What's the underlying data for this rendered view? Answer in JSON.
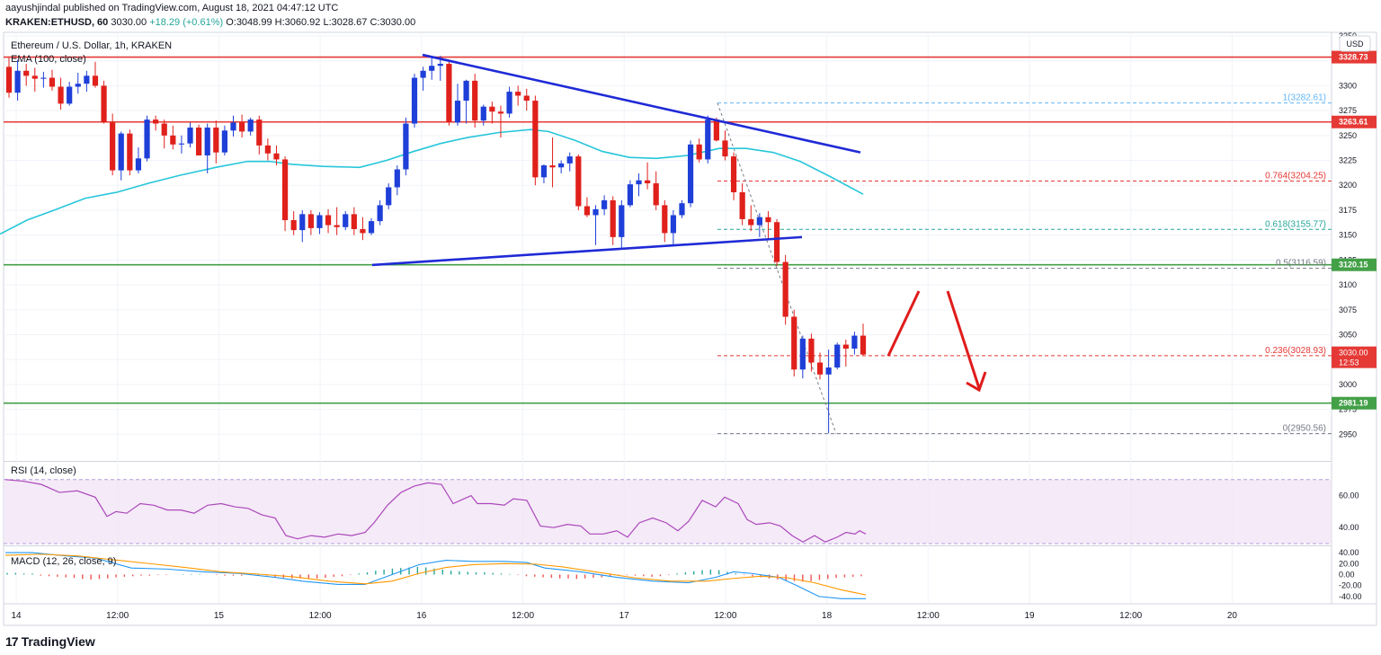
{
  "header": {
    "published": "aayushjindal published on TradingView.com, August 18, 2021 04:47:12 UTC",
    "symbol": "KRAKEN:ETHUSD, 60",
    "last": "3030.00",
    "change": "+18.29 (+0.61%)",
    "ohlc": "O:3048.99 H:3060.92 L:3028.67 C:3030.00"
  },
  "footer": {
    "brand": "TradingView",
    "mark": "17"
  },
  "chart_data": {
    "type": "candlestick",
    "title": "Ethereum / U.S. Dollar, 1h, KRAKEN",
    "currency": "USD",
    "indicator_label": "EMA (100, close)",
    "ylim": [
      2925,
      3350
    ],
    "y_ticks": [
      2950,
      2975,
      3000,
      3025,
      3050,
      3075,
      3100,
      3125,
      3150,
      3175,
      3200,
      3225,
      3250,
      3275,
      3300,
      3325,
      3350
    ],
    "x_ticks": [
      "14",
      "12:00",
      "15",
      "12:00",
      "16",
      "12:00",
      "17",
      "12:00",
      "18",
      "12:00",
      "19",
      "12:00",
      "20"
    ],
    "candles": [
      [
        3319,
        3328,
        3288,
        3293
      ],
      [
        3293,
        3326,
        3285,
        3315
      ],
      [
        3315,
        3322,
        3300,
        3310
      ],
      [
        3310,
        3318,
        3294,
        3307
      ],
      [
        3307,
        3314,
        3298,
        3308
      ],
      [
        3308,
        3316,
        3295,
        3299
      ],
      [
        3299,
        3308,
        3276,
        3282
      ],
      [
        3282,
        3304,
        3280,
        3299
      ],
      [
        3299,
        3313,
        3292,
        3302
      ],
      [
        3302,
        3315,
        3294,
        3310
      ],
      [
        3310,
        3324,
        3298,
        3300
      ],
      [
        3300,
        3305,
        3262,
        3263
      ],
      [
        3263,
        3272,
        3210,
        3215
      ],
      [
        3215,
        3254,
        3205,
        3252
      ],
      [
        3252,
        3256,
        3210,
        3215
      ],
      [
        3215,
        3238,
        3212,
        3227
      ],
      [
        3227,
        3270,
        3224,
        3266
      ],
      [
        3266,
        3270,
        3255,
        3262
      ],
      [
        3262,
        3266,
        3237,
        3250
      ],
      [
        3250,
        3260,
        3236,
        3241
      ],
      [
        3241,
        3250,
        3232,
        3242
      ],
      [
        3242,
        3263,
        3238,
        3258
      ],
      [
        3258,
        3261,
        3232,
        3230
      ],
      [
        3230,
        3262,
        3212,
        3258
      ],
      [
        3258,
        3265,
        3222,
        3233
      ],
      [
        3233,
        3260,
        3230,
        3255
      ],
      [
        3255,
        3270,
        3249,
        3263
      ],
      [
        3263,
        3271,
        3248,
        3254
      ],
      [
        3254,
        3268,
        3250,
        3266
      ],
      [
        3266,
        3270,
        3231,
        3240
      ],
      [
        3240,
        3247,
        3225,
        3232
      ],
      [
        3232,
        3240,
        3220,
        3226
      ],
      [
        3226,
        3229,
        3154,
        3165
      ],
      [
        3165,
        3174,
        3150,
        3155
      ],
      [
        3155,
        3175,
        3143,
        3171
      ],
      [
        3171,
        3175,
        3150,
        3157
      ],
      [
        3157,
        3173,
        3151,
        3170
      ],
      [
        3170,
        3176,
        3152,
        3160
      ],
      [
        3160,
        3178,
        3150,
        3158
      ],
      [
        3158,
        3174,
        3155,
        3171
      ],
      [
        3171,
        3178,
        3150,
        3156
      ],
      [
        3156,
        3168,
        3145,
        3152
      ],
      [
        3152,
        3167,
        3150,
        3164
      ],
      [
        3164,
        3185,
        3160,
        3180
      ],
      [
        3180,
        3202,
        3176,
        3198
      ],
      [
        3198,
        3220,
        3190,
        3216
      ],
      [
        3216,
        3268,
        3210,
        3262
      ],
      [
        3262,
        3312,
        3258,
        3308
      ],
      [
        3308,
        3319,
        3295,
        3315
      ],
      [
        3315,
        3328,
        3306,
        3320
      ],
      [
        3320,
        3330,
        3305,
        3322
      ],
      [
        3322,
        3325,
        3260,
        3263
      ],
      [
        3263,
        3302,
        3260,
        3285
      ],
      [
        3285,
        3306,
        3262,
        3305
      ],
      [
        3305,
        3312,
        3258,
        3265
      ],
      [
        3265,
        3281,
        3260,
        3279
      ],
      [
        3279,
        3284,
        3262,
        3274
      ],
      [
        3274,
        3280,
        3248,
        3272
      ],
      [
        3272,
        3299,
        3268,
        3294
      ],
      [
        3294,
        3300,
        3280,
        3290
      ],
      [
        3290,
        3297,
        3275,
        3285
      ],
      [
        3285,
        3290,
        3200,
        3208
      ],
      [
        3208,
        3221,
        3202,
        3220
      ],
      [
        3220,
        3248,
        3198,
        3218
      ],
      [
        3218,
        3225,
        3212,
        3222
      ],
      [
        3222,
        3233,
        3214,
        3229
      ],
      [
        3229,
        3231,
        3175,
        3179
      ],
      [
        3179,
        3188,
        3168,
        3170
      ],
      [
        3170,
        3180,
        3140,
        3176
      ],
      [
        3176,
        3190,
        3170,
        3185
      ],
      [
        3185,
        3189,
        3140,
        3148
      ],
      [
        3148,
        3185,
        3136,
        3180
      ],
      [
        3180,
        3205,
        3178,
        3201
      ],
      [
        3201,
        3212,
        3189,
        3205
      ],
      [
        3205,
        3223,
        3196,
        3202
      ],
      [
        3202,
        3214,
        3175,
        3180
      ],
      [
        3180,
        3185,
        3143,
        3152
      ],
      [
        3152,
        3175,
        3140,
        3170
      ],
      [
        3170,
        3185,
        3167,
        3182
      ],
      [
        3182,
        3245,
        3178,
        3241
      ],
      [
        3241,
        3247,
        3223,
        3226
      ],
      [
        3226,
        3270,
        3222,
        3266
      ],
      [
        3266,
        3268,
        3244,
        3245
      ],
      [
        3245,
        3255,
        3225,
        3229
      ],
      [
        3229,
        3233,
        3185,
        3193
      ],
      [
        3193,
        3202,
        3160,
        3166
      ],
      [
        3166,
        3180,
        3154,
        3160
      ],
      [
        3160,
        3172,
        3148,
        3168
      ],
      [
        3168,
        3174,
        3145,
        3163
      ],
      [
        3163,
        3166,
        3119,
        3123
      ],
      [
        3123,
        3130,
        3060,
        3068
      ],
      [
        3068,
        3075,
        3008,
        3015
      ],
      [
        3015,
        3049,
        3006,
        3046
      ],
      [
        3046,
        3051,
        3013,
        3022
      ],
      [
        3022,
        3032,
        3005,
        3010
      ],
      [
        3010,
        3035,
        2951,
        3017
      ],
      [
        3017,
        3042,
        3015,
        3040
      ],
      [
        3040,
        3045,
        3018,
        3036
      ],
      [
        3036,
        3053,
        3030,
        3049
      ],
      [
        3049,
        3061,
        3029,
        3030
      ]
    ],
    "ema_100": [
      [
        0,
        3151
      ],
      [
        30,
        3165
      ],
      [
        60,
        3175
      ],
      [
        95,
        3187
      ],
      [
        130,
        3193
      ],
      [
        165,
        3202
      ],
      [
        200,
        3210
      ],
      [
        240,
        3218
      ],
      [
        275,
        3224
      ],
      [
        300,
        3224
      ],
      [
        325,
        3221
      ],
      [
        360,
        3219
      ],
      [
        400,
        3218
      ],
      [
        430,
        3225
      ],
      [
        460,
        3234
      ],
      [
        490,
        3242
      ],
      [
        520,
        3248
      ],
      [
        555,
        3253
      ],
      [
        590,
        3256
      ],
      [
        610,
        3254
      ],
      [
        640,
        3245
      ],
      [
        670,
        3234
      ],
      [
        700,
        3228
      ],
      [
        730,
        3227
      ],
      [
        765,
        3230
      ],
      [
        800,
        3237
      ],
      [
        830,
        3237
      ],
      [
        860,
        3233
      ],
      [
        890,
        3224
      ],
      [
        925,
        3208
      ],
      [
        960,
        3191
      ]
    ],
    "price_levels": [
      {
        "value": 3328.73,
        "label": "3328.73",
        "color": "#e53935"
      },
      {
        "value": 3263.61,
        "label": "3263.61",
        "color": "#e53935"
      },
      {
        "value": 3120.15,
        "label": "3120.15",
        "color": "#43a047"
      },
      {
        "value": 2981.19,
        "label": "2981.19",
        "color": "#43a047"
      }
    ],
    "last_price": {
      "value": 3030.0,
      "label": "3030.00",
      "countdown": "12:53",
      "color": "#e53935"
    },
    "fibonacci": [
      {
        "level": "1",
        "value": 3282.61,
        "label": "1(3282.61)",
        "color": "#64b5f6"
      },
      {
        "level": "0.764",
        "value": 3204.25,
        "label": "0.764(3204.25)",
        "color": "#e53935"
      },
      {
        "level": "0.618",
        "value": 3155.77,
        "label": "0.618(3155.77)",
        "color": "#26a69a"
      },
      {
        "level": "0.5",
        "value": 3116.59,
        "label": "0.5(3116.59)",
        "color": "#787b86"
      },
      {
        "level": "0.236",
        "value": 3028.93,
        "label": "0.236(3028.93)",
        "color": "#e53935"
      },
      {
        "level": "0",
        "value": 2950.56,
        "label": "0(2950.56)",
        "color": "#787b86"
      }
    ],
    "trendlines": [
      {
        "name": "triangle-upper",
        "x1": 470,
        "y1": 3331,
        "x2": 957,
        "y2": 3233
      },
      {
        "name": "triangle-lower",
        "x1": 414,
        "y1": 3120,
        "x2": 892,
        "y2": 3148
      }
    ],
    "rsi": {
      "label": "RSI (14, close)",
      "ylim": [
        30,
        80
      ],
      "band": [
        30,
        70
      ],
      "ticks": [
        40,
        60
      ],
      "points": [
        [
          0,
          70
        ],
        [
          20,
          69
        ],
        [
          40,
          67
        ],
        [
          60,
          62
        ],
        [
          80,
          63
        ],
        [
          100,
          59
        ],
        [
          113,
          47
        ],
        [
          123,
          50
        ],
        [
          135,
          49
        ],
        [
          150,
          55
        ],
        [
          165,
          54
        ],
        [
          180,
          51
        ],
        [
          195,
          51
        ],
        [
          210,
          49
        ],
        [
          225,
          54
        ],
        [
          240,
          55
        ],
        [
          255,
          53
        ],
        [
          270,
          52
        ],
        [
          285,
          48
        ],
        [
          300,
          46
        ],
        [
          312,
          35
        ],
        [
          325,
          33
        ],
        [
          340,
          35
        ],
        [
          355,
          34
        ],
        [
          370,
          36
        ],
        [
          385,
          35
        ],
        [
          400,
          37
        ],
        [
          410,
          43
        ],
        [
          425,
          54
        ],
        [
          440,
          62
        ],
        [
          455,
          66
        ],
        [
          470,
          68
        ],
        [
          485,
          67
        ],
        [
          498,
          55
        ],
        [
          510,
          58
        ],
        [
          518,
          60
        ],
        [
          525,
          55
        ],
        [
          540,
          55
        ],
        [
          555,
          54
        ],
        [
          565,
          58
        ],
        [
          580,
          57
        ],
        [
          595,
          41
        ],
        [
          610,
          40
        ],
        [
          625,
          42
        ],
        [
          640,
          41
        ],
        [
          650,
          36
        ],
        [
          665,
          36
        ],
        [
          680,
          38
        ],
        [
          692,
          34
        ],
        [
          705,
          43
        ],
        [
          720,
          46
        ],
        [
          735,
          43
        ],
        [
          748,
          38
        ],
        [
          760,
          44
        ],
        [
          775,
          57
        ],
        [
          790,
          53
        ],
        [
          800,
          59
        ],
        [
          815,
          55
        ],
        [
          825,
          45
        ],
        [
          835,
          42
        ],
        [
          850,
          43
        ],
        [
          862,
          41
        ],
        [
          875,
          35
        ],
        [
          887,
          31
        ],
        [
          900,
          35
        ],
        [
          912,
          31
        ],
        [
          925,
          34
        ],
        [
          935,
          37
        ],
        [
          945,
          36
        ],
        [
          950,
          38
        ],
        [
          957,
          36
        ]
      ]
    },
    "macd": {
      "label": "MACD (12, 26, close, 9)",
      "ylim": [
        -50,
        45
      ],
      "ticks": [
        -40,
        -20,
        0,
        20,
        40
      ],
      "macd_line": [
        [
          0,
          40
        ],
        [
          30,
          40
        ],
        [
          60,
          35
        ],
        [
          100,
          30
        ],
        [
          140,
          12
        ],
        [
          180,
          10
        ],
        [
          220,
          5
        ],
        [
          260,
          2
        ],
        [
          300,
          -5
        ],
        [
          330,
          -12
        ],
        [
          370,
          -18
        ],
        [
          400,
          -18
        ],
        [
          430,
          0
        ],
        [
          460,
          18
        ],
        [
          490,
          26
        ],
        [
          520,
          24
        ],
        [
          555,
          24
        ],
        [
          580,
          22
        ],
        [
          600,
          12
        ],
        [
          640,
          5
        ],
        [
          680,
          -5
        ],
        [
          720,
          -12
        ],
        [
          760,
          -15
        ],
        [
          790,
          -5
        ],
        [
          810,
          5
        ],
        [
          830,
          2
        ],
        [
          860,
          -5
        ],
        [
          880,
          -20
        ],
        [
          905,
          -40
        ],
        [
          930,
          -44
        ],
        [
          957,
          -44
        ]
      ],
      "signal_line": [
        [
          0,
          35
        ],
        [
          40,
          37
        ],
        [
          80,
          34
        ],
        [
          120,
          27
        ],
        [
          160,
          20
        ],
        [
          200,
          13
        ],
        [
          240,
          5
        ],
        [
          280,
          1
        ],
        [
          320,
          -4
        ],
        [
          360,
          -12
        ],
        [
          400,
          -17
        ],
        [
          430,
          -12
        ],
        [
          460,
          2
        ],
        [
          490,
          13
        ],
        [
          520,
          18
        ],
        [
          555,
          20
        ],
        [
          590,
          19
        ],
        [
          620,
          14
        ],
        [
          660,
          4
        ],
        [
          700,
          -6
        ],
        [
          740,
          -12
        ],
        [
          780,
          -12
        ],
        [
          810,
          -7
        ],
        [
          840,
          -3
        ],
        [
          870,
          -6
        ],
        [
          900,
          -15
        ],
        [
          930,
          -28
        ],
        [
          957,
          -37
        ]
      ],
      "histogram": [
        3,
        3,
        2,
        2,
        -2,
        -3,
        -4,
        -5,
        -6,
        -8,
        -9,
        -8,
        -7,
        -5,
        -4,
        -3,
        -2,
        -2,
        -1,
        -1,
        0,
        1,
        1,
        1,
        0,
        -1,
        -2,
        -2,
        -2,
        -1,
        -1,
        -2,
        -4,
        -6,
        -7,
        -7,
        -8,
        -7,
        -6,
        -4,
        -3,
        -1,
        2,
        4,
        7,
        9,
        11,
        12,
        13,
        14,
        13,
        11,
        9,
        7,
        6,
        5,
        4,
        4,
        3,
        2,
        1,
        -1,
        -3,
        -4,
        -5,
        -6,
        -7,
        -7,
        -8,
        -7,
        -6,
        -5,
        -3,
        -2,
        -1,
        -2,
        -3,
        -4,
        -3,
        -1,
        2,
        4,
        6,
        8,
        9,
        8,
        5,
        2,
        -1,
        -3,
        -5,
        -7,
        -9,
        -11,
        -12,
        -13,
        -12,
        -10,
        -8,
        -6,
        -5,
        -4,
        -3
      ]
    }
  }
}
